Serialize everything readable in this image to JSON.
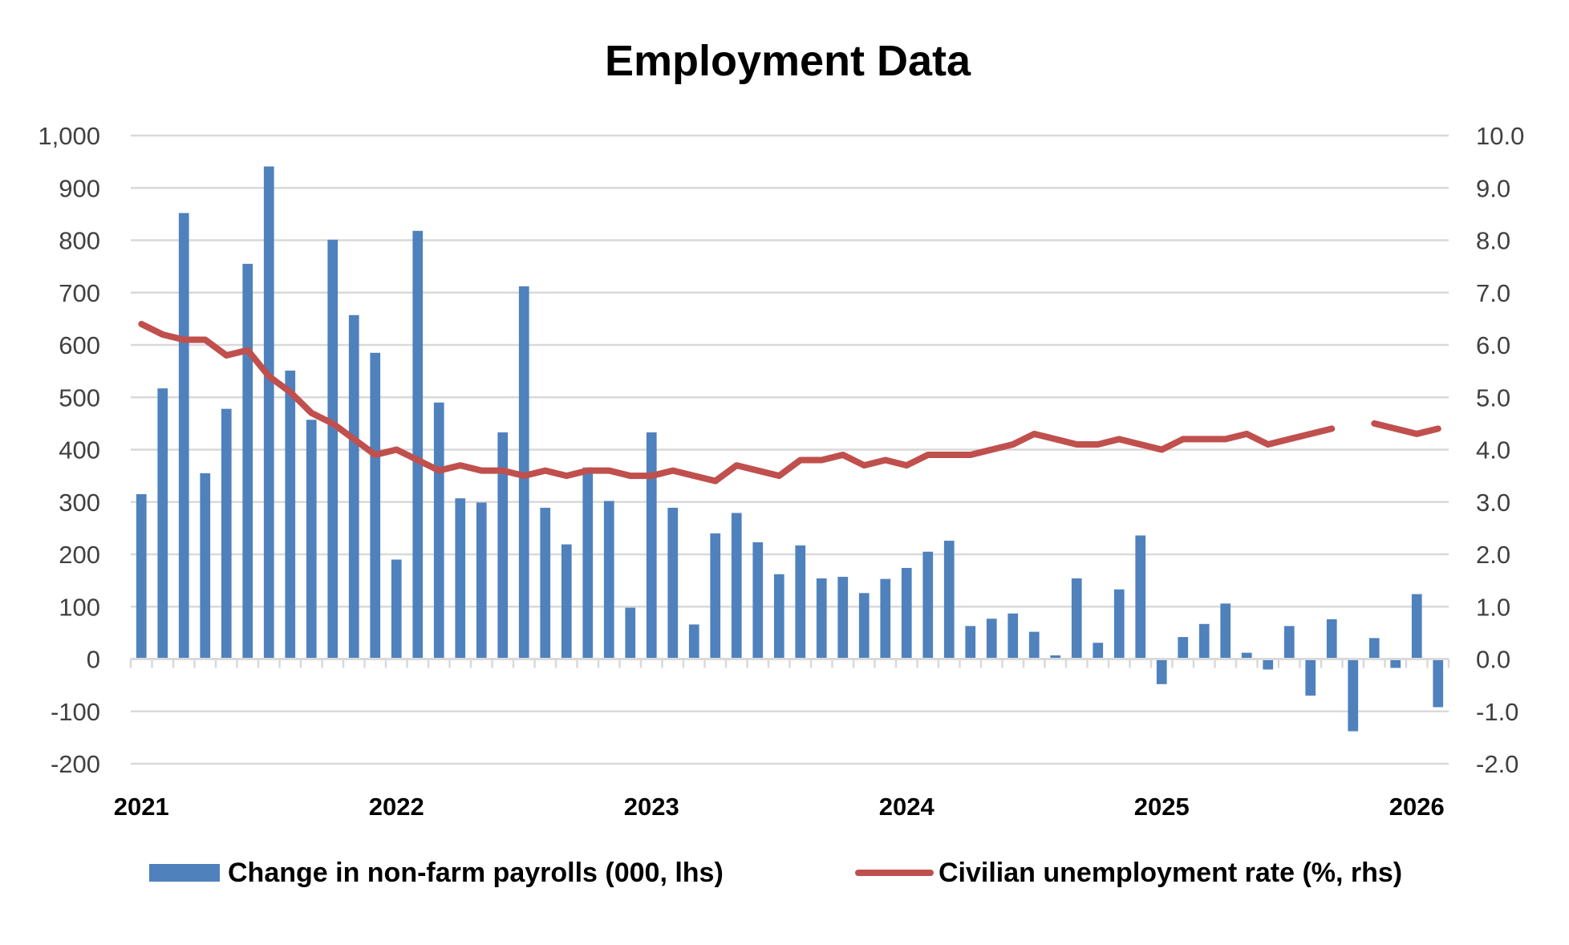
{
  "chart_data": {
    "type": "bar+line",
    "title": "Employment Data",
    "x_tick_labels": [
      "2021",
      "2022",
      "2023",
      "2024",
      "2025",
      "2026"
    ],
    "start_month": "2021-01",
    "left_axis": {
      "ylim": [
        -200,
        1000
      ],
      "tick_values": [
        -200,
        -100,
        0,
        100,
        200,
        300,
        400,
        500,
        600,
        700,
        800,
        900,
        1000
      ],
      "tick_labels": [
        "-200",
        "-100",
        "0",
        "100",
        "200",
        "300",
        "400",
        "500",
        "600",
        "700",
        "800",
        "900",
        "1,000"
      ]
    },
    "right_axis": {
      "ylim": [
        -2,
        10
      ],
      "tick_values": [
        -2,
        -1,
        0,
        1,
        2,
        3,
        4,
        5,
        6,
        7,
        8,
        9,
        10
      ],
      "tick_labels": [
        "-2.0",
        "-1.0",
        "0.0",
        "1.0",
        "2.0",
        "3.0",
        "4.0",
        "5.0",
        "6.0",
        "7.0",
        "8.0",
        "9.0",
        "10.0"
      ]
    },
    "grid": true,
    "legend_position": "bottom",
    "series": [
      {
        "name": "Change in non-farm payrolls (000, lhs)",
        "type": "bar",
        "color": "#4f81bd",
        "values": [
          315,
          517,
          852,
          355,
          478,
          755,
          941,
          551,
          457,
          801,
          657,
          585,
          190,
          818,
          490,
          307,
          299,
          433,
          712,
          289,
          219,
          366,
          302,
          98,
          433,
          289,
          66,
          240,
          279,
          223,
          162,
          217,
          154,
          157,
          126,
          153,
          174,
          205,
          226,
          63,
          77,
          87,
          52,
          7,
          154,
          31,
          133,
          236,
          -48,
          42,
          67,
          106,
          12,
          -20,
          63,
          -70,
          76,
          -138,
          40,
          -17,
          124,
          -92
        ]
      },
      {
        "name": "Civilian unemployment rate (%, rhs)",
        "type": "line",
        "color": "#c0504d",
        "values": [
          6.4,
          6.2,
          6.1,
          6.1,
          5.8,
          5.9,
          5.4,
          5.1,
          4.7,
          4.5,
          4.2,
          3.9,
          4.0,
          3.8,
          3.6,
          3.7,
          3.6,
          3.6,
          3.5,
          3.6,
          3.5,
          3.6,
          3.6,
          3.5,
          3.5,
          3.6,
          3.5,
          3.4,
          3.7,
          3.6,
          3.5,
          3.8,
          3.8,
          3.9,
          3.7,
          3.8,
          3.7,
          3.9,
          3.9,
          3.9,
          4.0,
          4.1,
          4.3,
          4.2,
          4.1,
          4.1,
          4.2,
          4.1,
          4.0,
          4.2,
          4.2,
          4.2,
          4.3,
          4.1,
          4.2,
          4.3,
          4.4,
          null,
          4.5,
          4.4,
          4.3,
          4.4
        ]
      }
    ]
  }
}
